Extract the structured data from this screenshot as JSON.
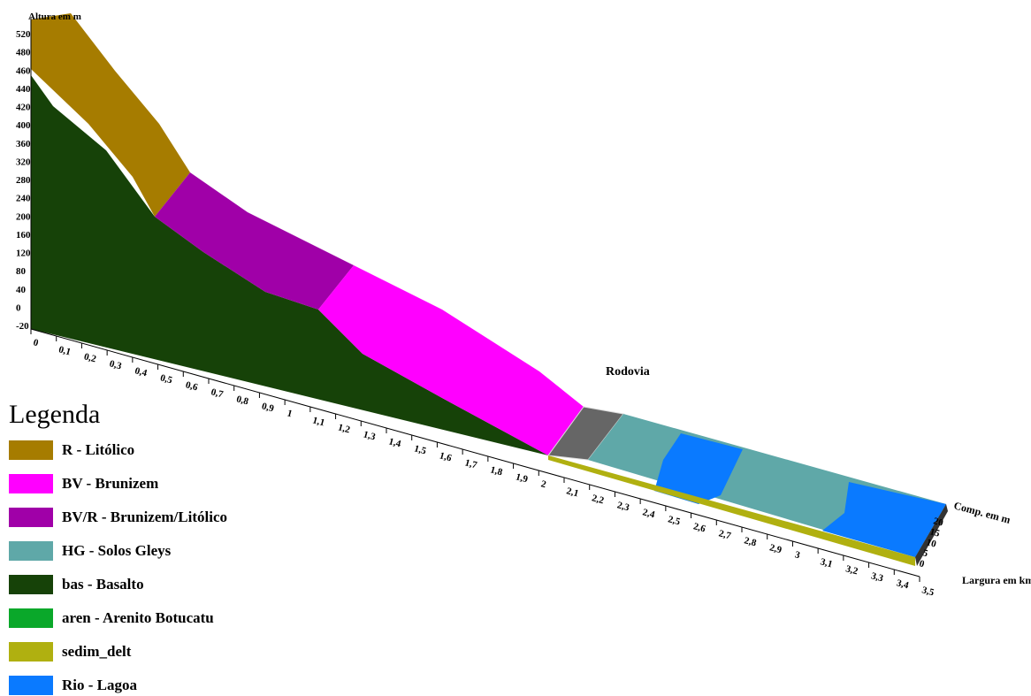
{
  "diagram": {
    "height_axis": {
      "label": "Altura em m",
      "ticks": [
        "520",
        "480",
        "460",
        "440",
        "420",
        "400",
        "360",
        "320",
        "280",
        "240",
        "200",
        "160",
        "120",
        "80",
        "40",
        "0",
        "-20"
      ]
    },
    "length_axis": {
      "label": "Largura em km",
      "ticks": [
        "0",
        "0,1",
        "0,2",
        "0,3",
        "0,4",
        "0,5",
        "0,6",
        "0,7",
        "0,8",
        "0,9",
        "1",
        "1,1",
        "1,2",
        "1,3",
        "1,4",
        "1,5",
        "1,6",
        "1,7",
        "1,8",
        "1,9",
        "2",
        "2,1",
        "2,2",
        "2,3",
        "2,4",
        "2,5",
        "2,6",
        "2,7",
        "2,8",
        "2,9",
        "3",
        "3,1",
        "3,2",
        "3,3",
        "3,4",
        "3,5"
      ]
    },
    "width_axis": {
      "label": "Comp. em m",
      "ticks": [
        "20",
        "15",
        "10",
        "5",
        "0"
      ]
    },
    "annotation": "Rodovia",
    "legend": {
      "title": "Legenda",
      "items": [
        {
          "label": "R - Litólico",
          "color": "#a67c00"
        },
        {
          "label": "BV - Brunizem",
          "color": "#ff00ff"
        },
        {
          "label": "BV/R - Brunizem/Litólico",
          "color": "#a000a8"
        },
        {
          "label": "HG - Solos Gleys",
          "color": "#5fa8a8"
        },
        {
          "label": "bas - Basalto",
          "color": "#164208"
        },
        {
          "label": "aren - Arenito Botucatu",
          "color": "#0aa82a"
        },
        {
          "label": "sedim_delt",
          "color": "#b0b010"
        },
        {
          "label": "Rio - Lagoa",
          "color": "#0a7aff"
        }
      ]
    }
  }
}
